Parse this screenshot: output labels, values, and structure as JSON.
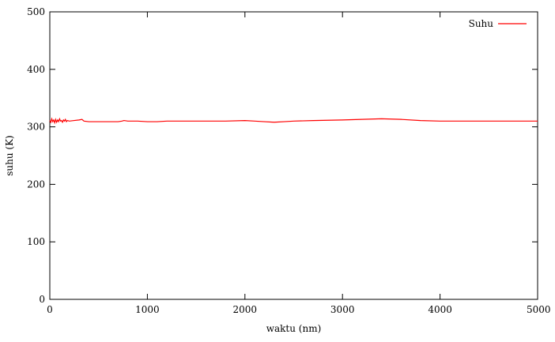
{
  "chart_data": {
    "type": "line",
    "title": "",
    "xlabel": "waktu (nm)",
    "ylabel": "suhu (K)",
    "xlim": [
      0,
      5000
    ],
    "ylim": [
      0,
      500
    ],
    "x_ticks": [
      "0",
      "1000",
      "2000",
      "3000",
      "4000",
      "5000"
    ],
    "y_ticks": [
      "0",
      "100",
      "200",
      "300",
      "400",
      "500"
    ],
    "legend_placement": "top-right",
    "grid": false,
    "series": [
      {
        "name": "Suhu",
        "color": "#ff0000",
        "x": [
          0,
          10,
          20,
          30,
          40,
          50,
          60,
          70,
          80,
          90,
          100,
          110,
          120,
          130,
          140,
          150,
          160,
          170,
          180,
          200,
          250,
          300,
          330,
          350,
          400,
          500,
          600,
          700,
          740,
          760,
          800,
          900,
          1000,
          1100,
          1200,
          1500,
          1800,
          2000,
          2100,
          2200,
          2300,
          2400,
          2500,
          2700,
          3000,
          3200,
          3400,
          3600,
          3800,
          4000,
          4200,
          4500,
          4800,
          5000
        ],
        "y": [
          311,
          308,
          314,
          309,
          312,
          307,
          313,
          308,
          312,
          309,
          314,
          310,
          311,
          308,
          312,
          310,
          313,
          309,
          311,
          310,
          311,
          312,
          313,
          310,
          309,
          309,
          309,
          309,
          310,
          311,
          310,
          310,
          309,
          309,
          310,
          310,
          310,
          311,
          310,
          309,
          308,
          309,
          310,
          311,
          312,
          313,
          314,
          313,
          311,
          310,
          310,
          310,
          310,
          310
        ]
      }
    ]
  }
}
